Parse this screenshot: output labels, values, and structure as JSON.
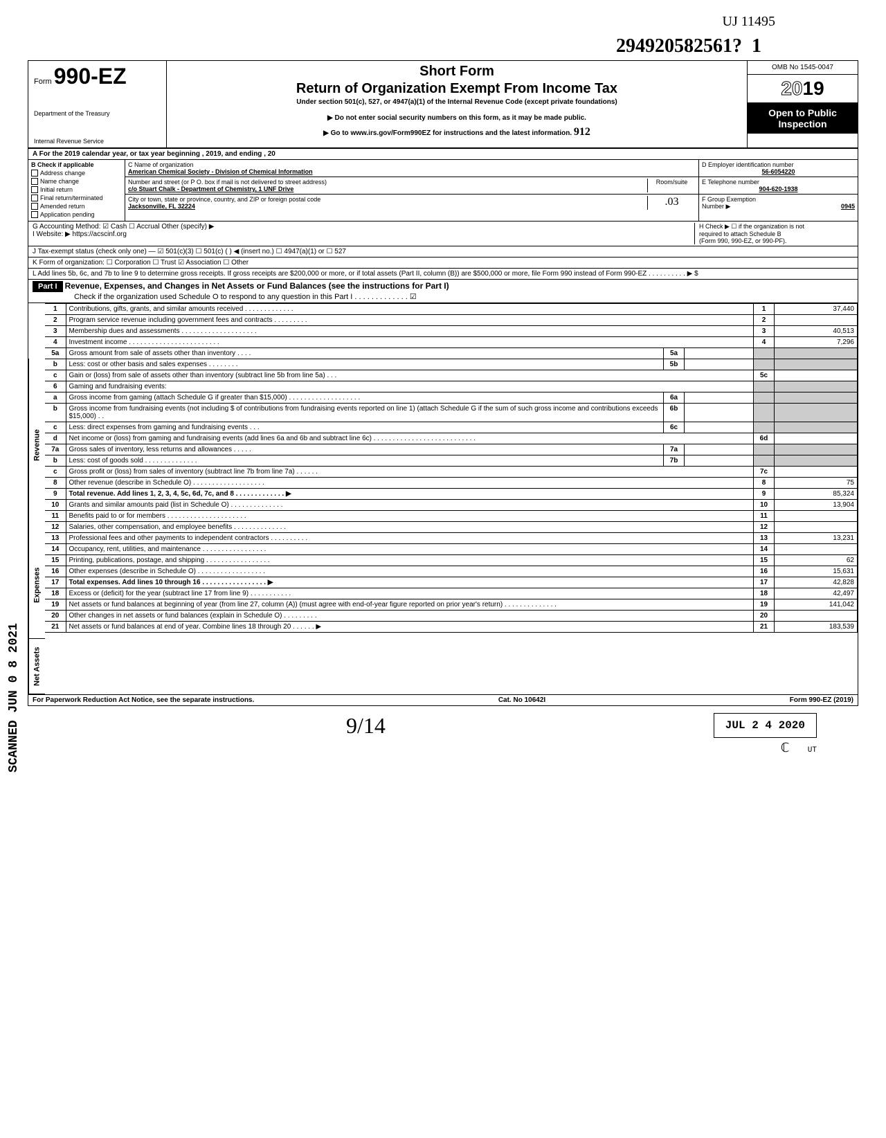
{
  "handwriting_top": "UJ 11495",
  "dln": "294920582561?",
  "dln_suffix": "1",
  "form": {
    "prefix": "Form",
    "number": "990-EZ",
    "dept1": "Department of the Treasury",
    "dept2": "Internal Revenue Service"
  },
  "title": {
    "short": "Short Form",
    "main": "Return of Organization Exempt From Income Tax",
    "subtitle": "Under section 501(c), 527, or 4947(a)(1) of the Internal Revenue Code (except private foundations)",
    "note1": "▶ Do not enter social security numbers on this form, as it may be made public.",
    "note2": "▶ Go to www.irs.gov/Form990EZ for instructions and the latest information."
  },
  "header_right": {
    "omb": "OMB No 1545-0047",
    "year_outline": "20",
    "year_bold": "19",
    "open1": "Open to Public",
    "open2": "Inspection"
  },
  "hw_year": "912",
  "row_a": "A  For the 2019 calendar year, or tax year beginning                                                      , 2019, and ending                                    , 20",
  "section_b": {
    "label": "B  Check if applicable",
    "items": [
      "Address change",
      "Name change",
      "Initial return",
      "Final return/terminated",
      "Amended return",
      "Application pending"
    ]
  },
  "section_c": {
    "label_c": "C  Name of organization",
    "org_name": "American Chemical Society - Division of Chemical Information",
    "label_addr": "Number and street (or P O. box if mail is not delivered to street address)",
    "room": "Room/suite",
    "address": "c/o Stuart Chalk - Department of Chemistry, 1 UNF Drive",
    "label_city": "City or town, state or province, country, and ZIP or foreign postal code",
    "city": "Jacksonville, FL 32224",
    "hw_room": ".03"
  },
  "section_d": {
    "label": "D Employer identification number",
    "value": "56-6054220"
  },
  "section_e": {
    "label": "E Telephone number",
    "value": "904-620-1938"
  },
  "section_f": {
    "label": "F Group Exemption",
    "label2": "Number ▶",
    "value": "0945"
  },
  "row_g": "G  Accounting Method:    ☑ Cash    ☐ Accrual    Other (specify) ▶",
  "row_h": {
    "line1": "H  Check ▶ ☐ if the organization is not",
    "line2": "required to attach Schedule B",
    "line3": "(Form 990, 990-EZ, or 990-PF)."
  },
  "row_i": "I   Website: ▶       https://acscinf.org",
  "row_j": "J  Tax-exempt status (check only one) —  ☑ 501(c)(3)   ☐ 501(c) (        ) ◀ (insert no.) ☐ 4947(a)(1) or   ☐ 527",
  "row_k": "K  Form of organization:   ☐ Corporation      ☐ Trust              ☑ Association    ☐ Other",
  "row_l": "L  Add lines 5b, 6c, and 7b to line 9 to determine gross receipts. If gross receipts are $200,000 or more, or if total assets (Part II, column (B)) are $500,000 or more, file Form 990 instead of Form 990-EZ .   .   .   .   .   .   .   .   .   .   ▶   $",
  "part1": {
    "label": "Part I",
    "title": "Revenue, Expenses, and Changes in Net Assets or Fund Balances (see the instructions for Part I)",
    "check": "Check if the organization used Schedule O to respond to any question in this Part I  .  .  .  .  .  .  .  .  .  .  .  .  .  ☑"
  },
  "sides": {
    "revenue": "Revenue",
    "expenses": "Expenses",
    "netassets": "Net Assets"
  },
  "lines": [
    {
      "n": "1",
      "desc": "Contributions, gifts, grants, and similar amounts received .   .   .   .   .   .   .   .   .   .   .   .   .",
      "ref": "1",
      "val": "37,440"
    },
    {
      "n": "2",
      "desc": "Program service revenue including government fees and contracts   .   .   .   .   .   .   .   .   .",
      "ref": "2",
      "val": ""
    },
    {
      "n": "3",
      "desc": "Membership dues and assessments .   .   .   .   .   .   .   .   .   .   .   .   .   .   .   .   .   .   .   .",
      "ref": "3",
      "val": "40,513"
    },
    {
      "n": "4",
      "desc": "Investment income    .   .   .   .   .   .   .   .   .   .   .   .   .   .   .   .   .   .   .   .   .   .   .   .",
      "ref": "4",
      "val": "7,296"
    },
    {
      "n": "5a",
      "desc": "Gross amount from sale of assets other than inventory   .   .   .   .",
      "inner_ref": "5a",
      "inner_val": "",
      "shaded": true
    },
    {
      "n": "b",
      "desc": "Less: cost or other basis and sales expenses .   .   .   .   .   .   .   .",
      "inner_ref": "5b",
      "inner_val": "",
      "shaded": true
    },
    {
      "n": "c",
      "desc": "Gain or (loss) from sale of assets other than inventory (subtract line 5b from line 5a)  .   .   .",
      "ref": "5c",
      "val": ""
    },
    {
      "n": "6",
      "desc": "Gaming and fundraising events:",
      "shaded": true
    },
    {
      "n": "a",
      "desc": "Gross income from gaming (attach Schedule G if greater than $15,000) .   .   .   .   .   .   .   .   .   .   .   .   .   .   .   .   .   .   .",
      "inner_ref": "6a",
      "inner_val": "",
      "shaded": true
    },
    {
      "n": "b",
      "desc": "Gross income from fundraising events (not including  $                    of contributions from fundraising events reported on line 1) (attach Schedule G if the sum of such gross income and contributions exceeds $15,000) .   .",
      "inner_ref": "6b",
      "inner_val": "",
      "shaded": true
    },
    {
      "n": "c",
      "desc": "Less: direct expenses from gaming and fundraising events   .   .   .",
      "inner_ref": "6c",
      "inner_val": "",
      "shaded": true
    },
    {
      "n": "d",
      "desc": "Net income or (loss) from gaming and fundraising events (add lines 6a and 6b and subtract line 6c)    .   .   .   .   .   .   .   .   .   .   .   .   .   .   .   .   .   .   .   .   .   .   .   .   .   .   .",
      "ref": "6d",
      "val": ""
    },
    {
      "n": "7a",
      "desc": "Gross sales of inventory, less returns and allowances   .   .   .   .   .",
      "inner_ref": "7a",
      "inner_val": "",
      "shaded": true
    },
    {
      "n": "b",
      "desc": "Less: cost of goods sold     .   .   .   .   .   .   .   .   .   .   .   .   .   .",
      "inner_ref": "7b",
      "inner_val": "",
      "shaded": true
    },
    {
      "n": "c",
      "desc": "Gross profit or (loss) from sales of inventory (subtract line 7b from line 7a)   .   .   .   .   .   .",
      "ref": "7c",
      "val": ""
    },
    {
      "n": "8",
      "desc": "Other revenue (describe in Schedule O) .   .   .   .   .   .   .   .   .   .   .   .   .   .   .   .   .   .   .",
      "ref": "8",
      "val": "75"
    },
    {
      "n": "9",
      "desc": "Total revenue. Add lines 1, 2, 3, 4, 5c, 6d, 7c, and 8   .   .   .   .   .   .   .   .   .   .   .   .   .   ▶",
      "ref": "9",
      "val": "85,324",
      "bold": true
    },
    {
      "n": "10",
      "desc": "Grants and similar amounts paid (list in Schedule O)   .   .   .   .   .   .   .   .   .   .   .   .   .   .",
      "ref": "10",
      "val": "13,904"
    },
    {
      "n": "11",
      "desc": "Benefits paid to or for members  .   .   .   .   .   .   .   .   .   .   .   .   .   .   .   .   .   .   .   .   .",
      "ref": "11",
      "val": ""
    },
    {
      "n": "12",
      "desc": "Salaries, other compensation, and employee benefits .   .   .   .   .   .   .   .   .   .   .   .   .   .",
      "ref": "12",
      "val": ""
    },
    {
      "n": "13",
      "desc": "Professional fees and other payments to independent contractors .   .   .   .   .   .   .   .   .   .",
      "ref": "13",
      "val": "13,231"
    },
    {
      "n": "14",
      "desc": "Occupancy, rent, utilities, and maintenance   .   .   .   .   .   .   .   .   .   .   .   .   .   .   .   .   .",
      "ref": "14",
      "val": ""
    },
    {
      "n": "15",
      "desc": "Printing, publications, postage, and shipping .   .   .   .   .   .   .   .   .   .   .   .   .   .   .   .   .",
      "ref": "15",
      "val": "62"
    },
    {
      "n": "16",
      "desc": "Other expenses (describe in Schedule O)  .   .   .   .   .   .   .   .   .   .   .   .   .   .   .   .   .   .",
      "ref": "16",
      "val": "15,631"
    },
    {
      "n": "17",
      "desc": "Total expenses. Add lines 10 through 16   .   .   .   .   .   .   .   .   .   .   .   .   .   .   .   .   .   ▶",
      "ref": "17",
      "val": "42,828",
      "bold": true
    },
    {
      "n": "18",
      "desc": "Excess or (deficit) for the year (subtract line 17 from line 9)    .   .   .   .   .   .   .   .   .   .   .",
      "ref": "18",
      "val": "42,497"
    },
    {
      "n": "19",
      "desc": "Net assets or fund balances at beginning of year (from line 27, column (A)) (must agree with end-of-year figure reported on prior year's return)    .   .   .   .   .   .   .   .   .   .   .   .   .   .",
      "ref": "19",
      "val": "141,042"
    },
    {
      "n": "20",
      "desc": "Other changes in net assets or fund balances (explain in Schedule O) .   .   .   .   .   .   .   .   .",
      "ref": "20",
      "val": ""
    },
    {
      "n": "21",
      "desc": "Net assets or fund balances at end of year. Combine lines 18 through 20    .   .   .   .   .   .   ▶",
      "ref": "21",
      "val": "183,539"
    }
  ],
  "footer": {
    "left": "For Paperwork Reduction Act Notice, see the separate instructions.",
    "center": "Cat. No 10642I",
    "right": "Form 990-EZ (2019)"
  },
  "signature": "9/14",
  "stamp": "JUL 2 4 2020",
  "stamp2": "UT",
  "scanned": "SCANNED JUN 0 8 2021"
}
